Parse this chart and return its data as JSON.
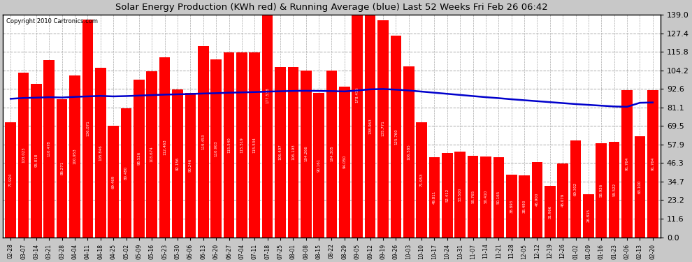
{
  "title": "Solar Energy Production (KWh red) & Running Average (blue) Last 52 Weeks Fri Feb 26 06:42",
  "copyright": "Copyright 2010 Cartronics.com",
  "bar_color": "#ff0000",
  "avg_line_color": "#0000cc",
  "background_color": "#c8c8c8",
  "plot_bg_color": "#ffffff",
  "grid_color": "#aaaaaa",
  "dates": [
    "02-28",
    "03-07",
    "03-14",
    "03-21",
    "03-28",
    "04-04",
    "04-11",
    "04-18",
    "04-25",
    "05-02",
    "05-09",
    "05-16",
    "05-23",
    "05-30",
    "06-06",
    "06-13",
    "06-20",
    "06-27",
    "07-04",
    "07-11",
    "07-18",
    "07-25",
    "08-01",
    "08-08",
    "08-15",
    "08-22",
    "08-29",
    "09-05",
    "09-12",
    "09-19",
    "09-26",
    "10-03",
    "10-10",
    "10-17",
    "10-24",
    "10-31",
    "11-07",
    "11-14",
    "11-21",
    "11-28",
    "12-05",
    "12-12",
    "12-19",
    "12-26",
    "01-02",
    "01-09",
    "01-16",
    "01-23",
    "02-06",
    "02-13",
    "02-20"
  ],
  "values": [
    71.924,
    103.023,
    95.818,
    110.478,
    86.271,
    100.953,
    136.071,
    105.846,
    69.469,
    80.48,
    98.526,
    103.674,
    112.463,
    92.156,
    90.246,
    119.453,
    110.903,
    115.54,
    115.519,
    115.534,
    177.538,
    106.407,
    106.193,
    104.266,
    90.161,
    104.305,
    94.05,
    178.416,
    138.963,
    135.771,
    125.76,
    106.585,
    71.953,
    49.811,
    52.412,
    53.5,
    50.765,
    50.41,
    50.165,
    38.893,
    38.493,
    46.9,
    31.966,
    46.079,
    60.302,
    26.815,
    58.926,
    59.522,
    91.764,
    63.1,
    91.764
  ],
  "running_avg": [
    86.5,
    87.0,
    87.2,
    87.5,
    87.3,
    87.7,
    88.0,
    88.3,
    88.0,
    88.2,
    88.5,
    88.8,
    89.1,
    89.3,
    89.5,
    89.8,
    90.0,
    90.3,
    90.5,
    90.7,
    91.0,
    91.2,
    91.4,
    91.5,
    91.4,
    91.3,
    91.1,
    91.7,
    92.4,
    92.6,
    92.2,
    91.7,
    91.0,
    90.3,
    89.6,
    88.9,
    88.2,
    87.5,
    86.9,
    86.2,
    85.6,
    85.0,
    84.4,
    83.8,
    83.2,
    82.7,
    82.2,
    81.7,
    81.5,
    84.0,
    84.2
  ],
  "yticks": [
    0.0,
    11.6,
    23.2,
    34.7,
    46.3,
    57.9,
    69.5,
    81.1,
    92.6,
    104.2,
    115.8,
    127.4,
    139.0
  ],
  "ymax": 139.0,
  "ymin": 0.0
}
